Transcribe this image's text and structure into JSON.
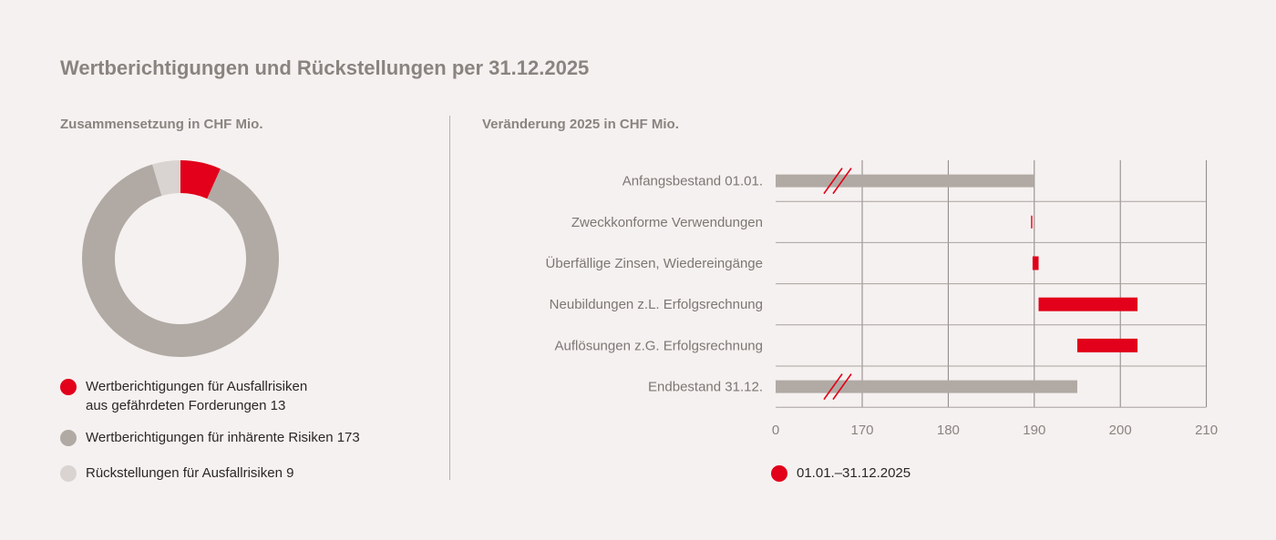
{
  "title": "Wertberichtigungen und Rückstellungen per 31.12.2025",
  "colors": {
    "red": "#e2001a",
    "grey": "#b1aaa4",
    "lightgrey": "#d9d4d1",
    "grid": "#8a8480"
  },
  "chart_data": [
    {
      "type": "pie",
      "subtitle": "Zusammensetzung in CHF Mio.",
      "donut": true,
      "slices": [
        {
          "label": "Wertberichtigungen für Ausfallrisiken aus gefährdeten Forderungen 13",
          "line1": "Wertberichtigungen für Ausfallrisiken",
          "line2": "aus gefährdeten Forderungen 13",
          "value": 13,
          "color": "#e2001a"
        },
        {
          "label": "Wertberichtigungen für inhärente Risiken 173",
          "line1": "Wertberichtigungen für inhärente Risiken 173",
          "value": 173,
          "color": "#b1aaa4"
        },
        {
          "label": "Rückstellungen für Ausfallrisiken 9",
          "line1": "Rückstellungen für Ausfallrisiken 9",
          "value": 9,
          "color": "#d9d4d1"
        }
      ]
    },
    {
      "type": "bar",
      "orientation": "horizontal-waterfall",
      "subtitle": "Veränderung 2025 in CHF Mio.",
      "categories": [
        "Anfangsbestand 01.01.",
        "Zweckkonforme Verwendungen",
        "Überfällige Zinsen, Wiedereingänge",
        "Neubildungen z.L. Erfolgsrechnung",
        "Auflösungen z.G. Erfolgsrechnung",
        "Endbestand 31.12."
      ],
      "bars": [
        {
          "start": 0,
          "end": 190,
          "kind": "total"
        },
        {
          "start": 189.6,
          "end": 189.8,
          "kind": "change"
        },
        {
          "start": 189.8,
          "end": 190.5,
          "kind": "change"
        },
        {
          "start": 190.5,
          "end": 202,
          "kind": "change"
        },
        {
          "start": 195,
          "end": 202,
          "kind": "change"
        },
        {
          "start": 0,
          "end": 195,
          "kind": "total"
        }
      ],
      "axis_break": true,
      "xticks": [
        "0",
        "170",
        "180",
        "190",
        "200",
        "210"
      ],
      "xtick_values": [
        0,
        170,
        180,
        190,
        200,
        210
      ],
      "xlim_break": [
        160,
        210
      ],
      "legend": [
        {
          "label": "01.01.–31.12.2025",
          "color": "#e2001a"
        }
      ],
      "grid": true
    }
  ]
}
